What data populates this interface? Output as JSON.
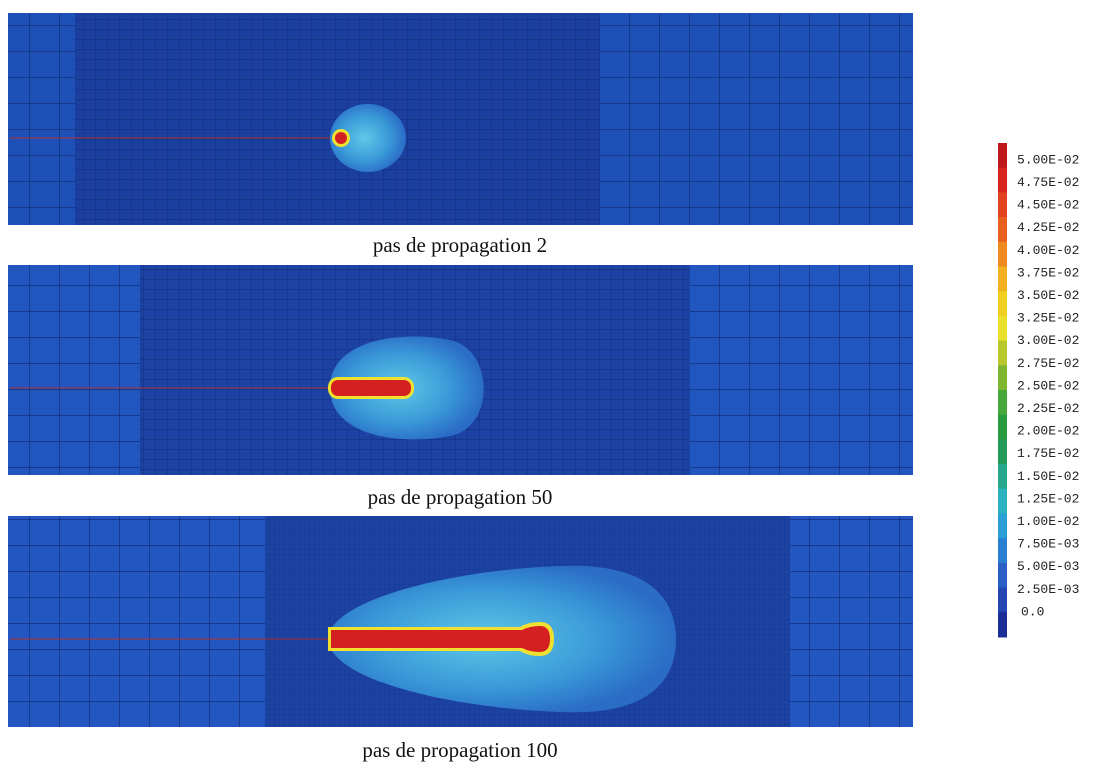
{
  "panels": [
    {
      "caption": "pas de propagation 2"
    },
    {
      "caption": "pas de propagation 50"
    },
    {
      "caption": "pas de propagation 100"
    }
  ],
  "colorbar": {
    "labels": [
      "5.00E-02",
      "4.75E-02",
      "4.50E-02",
      "4.25E-02",
      "4.00E-02",
      "3.75E-02",
      "3.50E-02",
      "3.25E-02",
      "3.00E-02",
      "2.75E-02",
      "2.50E-02",
      "2.25E-02",
      "2.00E-02",
      "1.75E-02",
      "1.50E-02",
      "1.25E-02",
      "1.00E-02",
      "7.50E-03",
      "5.00E-03",
      "2.50E-03",
      "0.0"
    ]
  }
}
